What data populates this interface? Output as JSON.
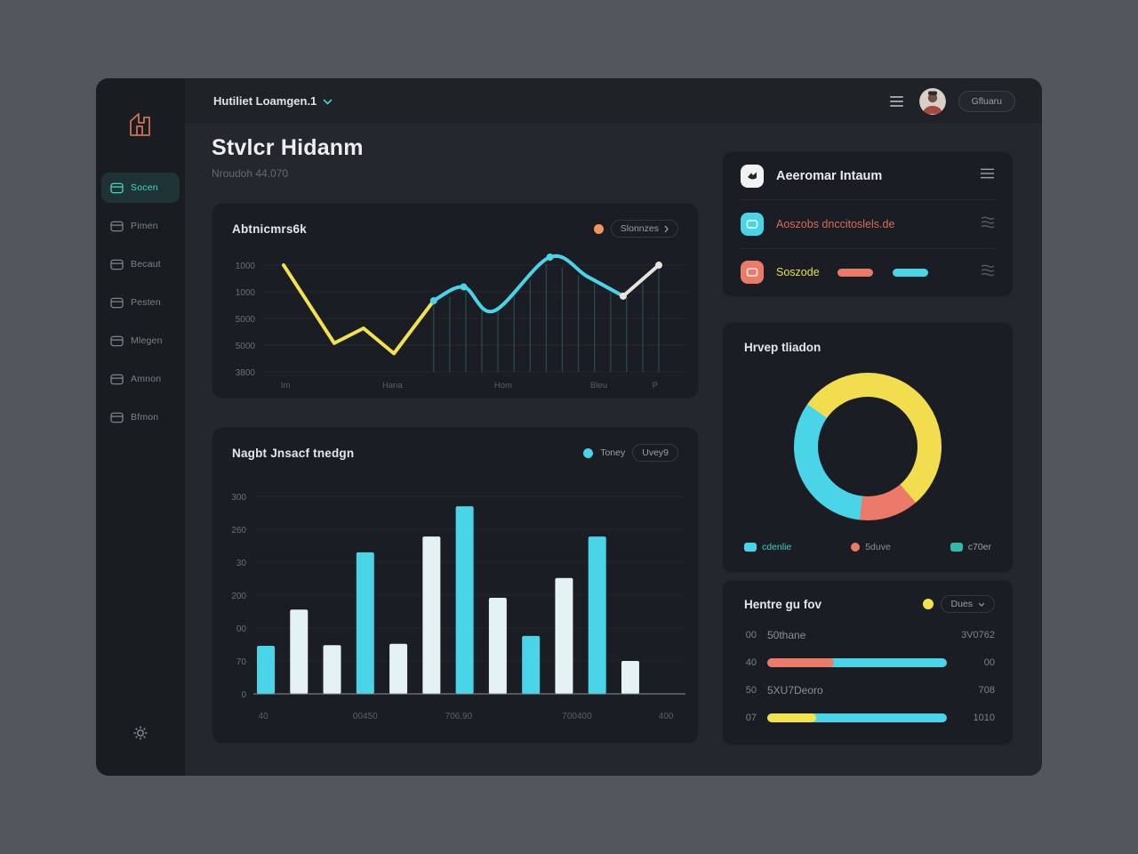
{
  "topbar": {
    "breadcrumb": "Hutiliet Loamgen.1",
    "profile_label": "Gfluaru"
  },
  "header": {
    "title": "Stvlcr Hidanm",
    "subtitle": "Nroudoh 44.070"
  },
  "sidebar": {
    "items": [
      {
        "label": "Socen",
        "active": true
      },
      {
        "label": "Pimen",
        "active": false
      },
      {
        "label": "Becaut",
        "active": false
      },
      {
        "label": "Pesten",
        "active": false
      },
      {
        "label": "Mlegen",
        "active": false
      },
      {
        "label": "Amnon",
        "active": false
      },
      {
        "label": "Bfmon",
        "active": false
      }
    ]
  },
  "colors": {
    "accent_teal": "#45d6c8",
    "cyan": "#4ad4e8",
    "pale": "#e4f2f4",
    "yellow": "#f2e24e",
    "orange": "#f0965c",
    "salmon": "#ec7a68"
  },
  "accounts_card": {
    "rows": [
      {
        "icon": "badge-icon",
        "icon_bg": "#f2f2f0",
        "glyph_color": "#23262b",
        "label": "Aeeromar Intaum",
        "label_color": "#e8eaed",
        "big": true,
        "right_icon": "menu",
        "pills": []
      },
      {
        "icon": "card-icon",
        "icon_bg": "#4ad4e8",
        "glyph_color": "#eafcff",
        "label": "Aoszobs dnccitoslels.de",
        "label_color": "#d96b58",
        "big": false,
        "right_icon": "lines",
        "pills": []
      },
      {
        "icon": "card-icon",
        "icon_bg": "#ec7a68",
        "glyph_color": "#ffefe9",
        "label": "Soszode",
        "label_color": "#e8e04a",
        "big": false,
        "right_icon": "lines",
        "pills": [
          "#ec7a68",
          "#4ad4e8"
        ]
      }
    ]
  },
  "chart_data": [
    {
      "id": "activity-line",
      "type": "line",
      "title": "Abtnicmrs6k",
      "legend": {
        "dot_color": "#f0965c",
        "label": "Slonnzes"
      },
      "y_ticks": [
        "1000",
        "1000",
        "5000",
        "5000",
        "3800"
      ],
      "x_ticks": [
        "Im",
        "Hana",
        "Hom",
        "Bleu",
        "P"
      ],
      "x_tick_pos": [
        0.005,
        0.29,
        0.585,
        0.84,
        0.99
      ],
      "grid": true,
      "ylim": [
        0,
        100
      ],
      "segments": [
        {
          "color": "#f2e24e",
          "smooth": false,
          "points": [
            [
              0,
              93
            ],
            [
              13.5,
              25
            ],
            [
              21.3,
              38
            ],
            [
              29.4,
              16
            ],
            [
              40,
              62
            ]
          ]
        },
        {
          "color": "#4ad4e8",
          "smooth": true,
          "points": [
            [
              40,
              62
            ],
            [
              48,
              74
            ],
            [
              56,
              53
            ],
            [
              71,
              100
            ],
            [
              81,
              83
            ],
            [
              90.5,
              66
            ]
          ]
        },
        {
          "color": "#e8e4dd",
          "smooth": true,
          "points": [
            [
              90.5,
              66
            ],
            [
              100,
              93
            ]
          ]
        }
      ],
      "markers": [
        {
          "x": 40,
          "y": 62,
          "color": "#4ad4e8"
        },
        {
          "x": 48,
          "y": 74,
          "color": "#4ad4e8"
        },
        {
          "x": 71,
          "y": 100,
          "color": "#4ad4e8"
        },
        {
          "x": 90.5,
          "y": 66,
          "color": "#e8e4dd"
        },
        {
          "x": 100,
          "y": 93,
          "color": "#e8e4dd"
        }
      ],
      "droplines": {
        "x_start": 40,
        "x_end": 100,
        "count": 15
      }
    },
    {
      "id": "volume-bars",
      "type": "bar",
      "title": "Nagbt Jnsacf tnedgn",
      "legend": {
        "dot_color": "#4ad4e8",
        "label": "Toney"
      },
      "button": "Uvey9",
      "y_ticks": [
        "300",
        "260",
        "30",
        "200",
        "00",
        "70",
        "0"
      ],
      "x_ticks": [
        "40",
        "00450",
        "706,90",
        "700400",
        "400"
      ],
      "x_tick_pos": [
        0.023,
        0.26,
        0.477,
        0.752,
        0.959
      ],
      "ymax": 300,
      "grid": true,
      "values": [
        73,
        128,
        74,
        215,
        76,
        239,
        285,
        146,
        88,
        176,
        239,
        50
      ],
      "bright_indexes": [
        0,
        3,
        6,
        8,
        10
      ],
      "color_bright": "#4ad4e8",
      "color_pale": "#e4f2f4"
    },
    {
      "id": "share-donut",
      "type": "pie",
      "title": "Hrvep tliadon",
      "start_deg": -55,
      "slices": [
        {
          "label": "cdenlie",
          "value": 54,
          "color": "#f2dd4e"
        },
        {
          "label": "5duve",
          "value": 13,
          "color": "#ec7a68"
        },
        {
          "label": "c70er",
          "value": 33,
          "color": "#4ad4e8"
        }
      ],
      "legend": [
        {
          "label": "cdenlie",
          "swatch": "square",
          "color": "#4ad4e8",
          "text_color": "#3fd0c4"
        },
        {
          "label": "5duve",
          "swatch": "dot",
          "color": "#ec7a68",
          "text_color": "#8a9097"
        },
        {
          "label": "c70er",
          "swatch": "square",
          "color": "#35b8ac",
          "text_color": "#9aa0a6"
        }
      ]
    },
    {
      "id": "metrics-list",
      "type": "table",
      "title": "Hentre gu fov",
      "dropdown_label": "Dues",
      "dot_color": "#f2e24e",
      "rows": [
        {
          "type": "text",
          "num": "00",
          "name": "50thane",
          "value": "3V0762"
        },
        {
          "type": "bar",
          "num": "40",
          "fill_pct": 37,
          "fill_color": "#ec7a68",
          "track_color": "#4ad4e8",
          "value": "00"
        },
        {
          "type": "text",
          "num": "50",
          "name": "5XU7Deoro",
          "value": "708"
        },
        {
          "type": "bar",
          "num": "07",
          "fill_pct": 27,
          "fill_color": "#f2e24e",
          "track_color": "#4ad4e8",
          "value": "1010"
        }
      ]
    }
  ]
}
